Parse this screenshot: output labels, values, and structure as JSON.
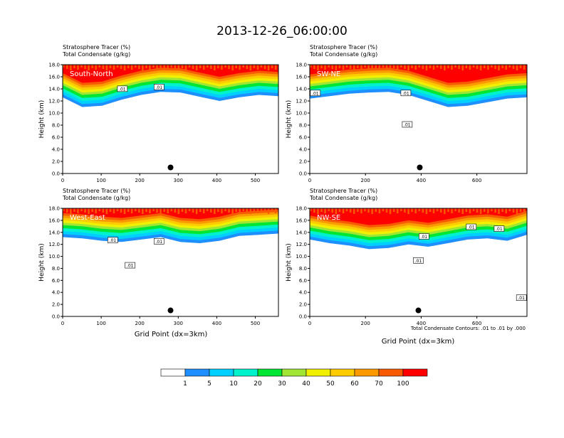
{
  "title": "2013-12-26_06:00:00",
  "field_labels": [
    "Stratosphere Tracer   (%)",
    "Total Condensate   (g/kg)"
  ],
  "ylabel": "Height (km)",
  "xlabel": "Grid Point (dx=3km)",
  "contour_note": "Total Condensate Contours: .01 to .01 by .000",
  "colors": [
    "#ffffff",
    "#1e8fff",
    "#00d0ff",
    "#00f2cd",
    "#00e632",
    "#a0e632",
    "#f0f000",
    "#fdcc00",
    "#fb9a00",
    "#f75a00",
    "#ff0000"
  ],
  "chart_data": [
    {
      "type": "heatmap",
      "label": "South-North",
      "xlim": [
        0,
        560
      ],
      "ylim": [
        0,
        18
      ],
      "xticks": [
        "0",
        "100",
        "200",
        "300",
        "400",
        "500"
      ],
      "xtick_values": [
        0,
        100,
        200,
        300,
        400,
        500
      ],
      "yticks": [
        "0.0",
        "2.0",
        "4.0",
        "6.0",
        "8.0",
        "10.0",
        "12.0",
        "14.0",
        "16.0",
        "18.0"
      ],
      "tracer_base_km": [
        12.6,
        11.0,
        11.2,
        12.2,
        13.0,
        13.5,
        13.4,
        12.7,
        12.0,
        12.6,
        13.0,
        12.8
      ],
      "contour_labels": [
        ".01",
        ".01"
      ],
      "contour_label_x": [
        155,
        250
      ],
      "contour_label_y": [
        13.9,
        14.2
      ],
      "marker": [
        280,
        1.0
      ]
    },
    {
      "type": "heatmap",
      "label": "SW-NE",
      "xlim": [
        0,
        780
      ],
      "ylim": [
        0,
        18
      ],
      "xticks": [
        "0",
        "200",
        "400",
        "600"
      ],
      "xtick_values": [
        0,
        200,
        400,
        600
      ],
      "yticks": [
        "0.0",
        "2.0",
        "4.0",
        "6.0",
        "8.0",
        "10.0",
        "12.0",
        "14.0",
        "16.0",
        "18.0"
      ],
      "tracer_base_km": [
        12.4,
        12.8,
        13.2,
        13.4,
        13.5,
        13.0,
        12.0,
        11.0,
        11.2,
        11.8,
        12.4,
        12.6
      ],
      "contour_labels": [
        ".01",
        ".01",
        ".01"
      ],
      "contour_label_x": [
        20,
        345,
        350
      ],
      "contour_label_y": [
        13.2,
        13.2,
        8.0
      ],
      "marker": [
        395,
        1.0
      ]
    },
    {
      "type": "heatmap",
      "label": "West-East",
      "xlim": [
        0,
        560
      ],
      "ylim": [
        0,
        18
      ],
      "xticks": [
        "0",
        "100",
        "200",
        "300",
        "400",
        "500"
      ],
      "xtick_values": [
        0,
        100,
        200,
        300,
        400,
        500
      ],
      "yticks": [
        "0.0",
        "2.0",
        "4.0",
        "6.0",
        "8.0",
        "10.0",
        "12.0",
        "14.0",
        "16.0",
        "18.0"
      ],
      "tracer_base_km": [
        13.2,
        13.0,
        12.6,
        12.4,
        12.8,
        13.2,
        12.4,
        12.2,
        12.6,
        13.4,
        13.6,
        13.8
      ],
      "contour_labels": [
        ".01",
        ".01",
        ".01"
      ],
      "contour_label_x": [
        130,
        250,
        175
      ],
      "contour_label_y": [
        12.6,
        12.4,
        8.4
      ],
      "marker": [
        280,
        1.0
      ]
    },
    {
      "type": "heatmap",
      "label": "NW-SE",
      "xlim": [
        0,
        780
      ],
      "ylim": [
        0,
        18
      ],
      "xticks": [
        "0",
        "200",
        "400",
        "600"
      ],
      "xtick_values": [
        0,
        200,
        400,
        600
      ],
      "yticks": [
        "0.0",
        "2.0",
        "4.0",
        "6.0",
        "8.0",
        "10.0",
        "12.0",
        "14.0",
        "16.0",
        "18.0"
      ],
      "tracer_base_km": [
        12.8,
        12.2,
        11.8,
        11.2,
        11.4,
        12.0,
        11.6,
        12.2,
        12.8,
        13.0,
        12.6,
        13.6
      ],
      "contour_labels": [
        ".01",
        ".01",
        ".01",
        ".01",
        ".01"
      ],
      "contour_label_x": [
        410,
        580,
        680,
        390,
        760
      ],
      "contour_label_y": [
        13.2,
        14.8,
        14.5,
        9.2,
        3.0
      ],
      "marker": [
        390,
        1.0
      ]
    }
  ],
  "colorbar": {
    "labels": [
      "1",
      "5",
      "10",
      "20",
      "30",
      "40",
      "50",
      "60",
      "70",
      "100"
    ]
  }
}
